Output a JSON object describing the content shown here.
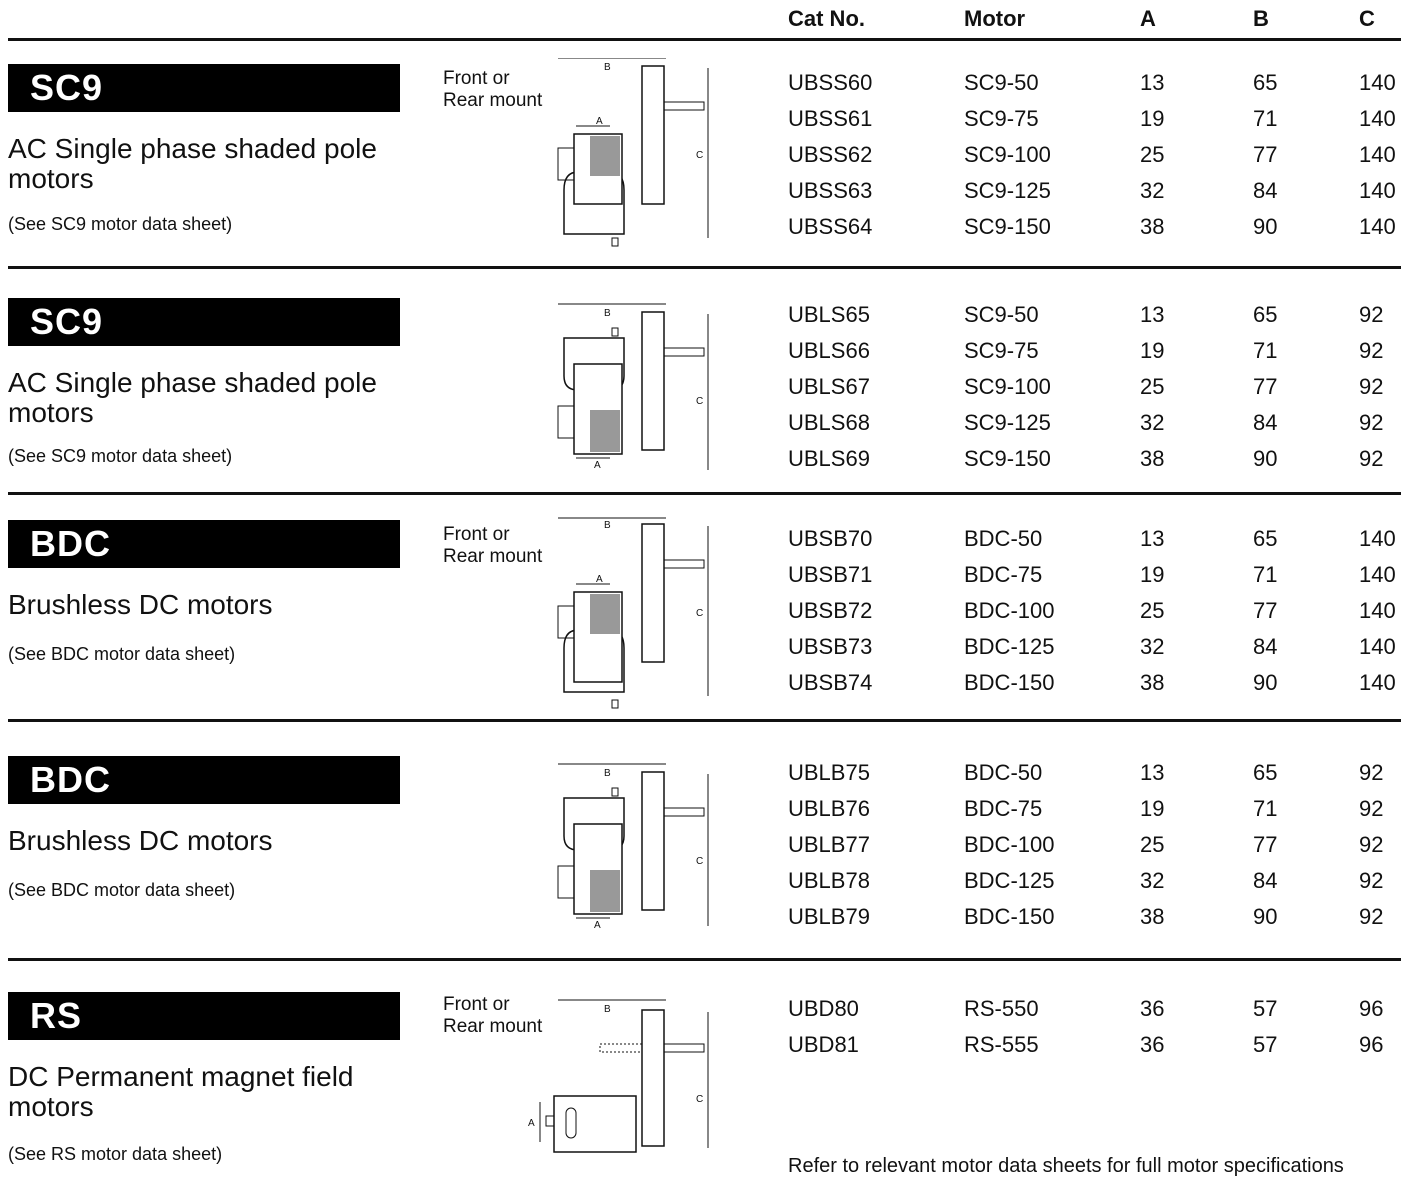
{
  "headers": {
    "cat": "Cat No.",
    "motor": "Motor",
    "a": "A",
    "b": "B",
    "c": "C"
  },
  "sections": [
    {
      "tag": "SC9",
      "desc": "AC Single phase shaded pole motors",
      "note": "(See SC9 motor data sheet)",
      "mount": "Front or Rear mount",
      "diagram": "short",
      "rows": [
        {
          "cat": "UBSS60",
          "motor": "SC9-50",
          "a": "13",
          "b": "65",
          "c": "140"
        },
        {
          "cat": "UBSS61",
          "motor": "SC9-75",
          "a": "19",
          "b": "71",
          "c": "140"
        },
        {
          "cat": "UBSS62",
          "motor": "SC9-100",
          "a": "25",
          "b": "77",
          "c": "140"
        },
        {
          "cat": "UBSS63",
          "motor": "SC9-125",
          "a": "32",
          "b": "84",
          "c": "140"
        },
        {
          "cat": "UBSS64",
          "motor": "SC9-150",
          "a": "38",
          "b": "90",
          "c": "140"
        }
      ]
    },
    {
      "tag": "SC9",
      "desc": "AC Single phase shaded pole motors",
      "note": "(See SC9 motor data sheet)",
      "mount": "",
      "diagram": "long",
      "rows": [
        {
          "cat": "UBLS65",
          "motor": "SC9-50",
          "a": "13",
          "b": "65",
          "c": "92"
        },
        {
          "cat": "UBLS66",
          "motor": "SC9-75",
          "a": "19",
          "b": "71",
          "c": "92"
        },
        {
          "cat": "UBLS67",
          "motor": "SC9-100",
          "a": "25",
          "b": "77",
          "c": "92"
        },
        {
          "cat": "UBLS68",
          "motor": "SC9-125",
          "a": "32",
          "b": "84",
          "c": "92"
        },
        {
          "cat": "UBLS69",
          "motor": "SC9-150",
          "a": "38",
          "b": "90",
          "c": "92"
        }
      ]
    },
    {
      "tag": "BDC",
      "desc": "Brushless DC motors",
      "note": "(See BDC motor data sheet)",
      "mount": "Front or Rear mount",
      "diagram": "short",
      "rows": [
        {
          "cat": "UBSB70",
          "motor": "BDC-50",
          "a": "13",
          "b": "65",
          "c": "140"
        },
        {
          "cat": "UBSB71",
          "motor": "BDC-75",
          "a": "19",
          "b": "71",
          "c": "140"
        },
        {
          "cat": "UBSB72",
          "motor": "BDC-100",
          "a": "25",
          "b": "77",
          "c": "140"
        },
        {
          "cat": "UBSB73",
          "motor": "BDC-125",
          "a": "32",
          "b": "84",
          "c": "140"
        },
        {
          "cat": "UBSB74",
          "motor": "BDC-150",
          "a": "38",
          "b": "90",
          "c": "140"
        }
      ]
    },
    {
      "tag": "BDC",
      "desc": "Brushless DC motors",
      "note": "(See BDC motor data sheet)",
      "mount": "",
      "diagram": "long",
      "rows": [
        {
          "cat": "UBLB75",
          "motor": "BDC-50",
          "a": "13",
          "b": "65",
          "c": "92"
        },
        {
          "cat": "UBLB76",
          "motor": "BDC-75",
          "a": "19",
          "b": "71",
          "c": "92"
        },
        {
          "cat": "UBLB77",
          "motor": "BDC-100",
          "a": "25",
          "b": "77",
          "c": "92"
        },
        {
          "cat": "UBLB78",
          "motor": "BDC-125",
          "a": "32",
          "b": "84",
          "c": "92"
        },
        {
          "cat": "UBLB79",
          "motor": "BDC-150",
          "a": "38",
          "b": "90",
          "c": "92"
        }
      ]
    },
    {
      "tag": "RS",
      "desc": "DC Permanent magnet field motors",
      "note": "(See RS motor data sheet)",
      "mount": "Front or Rear mount",
      "diagram": "rs",
      "rows": [
        {
          "cat": "UBD80",
          "motor": "RS-550",
          "a": "36",
          "b": "57",
          "c": "96"
        },
        {
          "cat": "UBD81",
          "motor": "RS-555",
          "a": "36",
          "b": "57",
          "c": "96"
        }
      ]
    }
  ],
  "footer": "Refer to relevant motor data sheets for full motor specifications"
}
